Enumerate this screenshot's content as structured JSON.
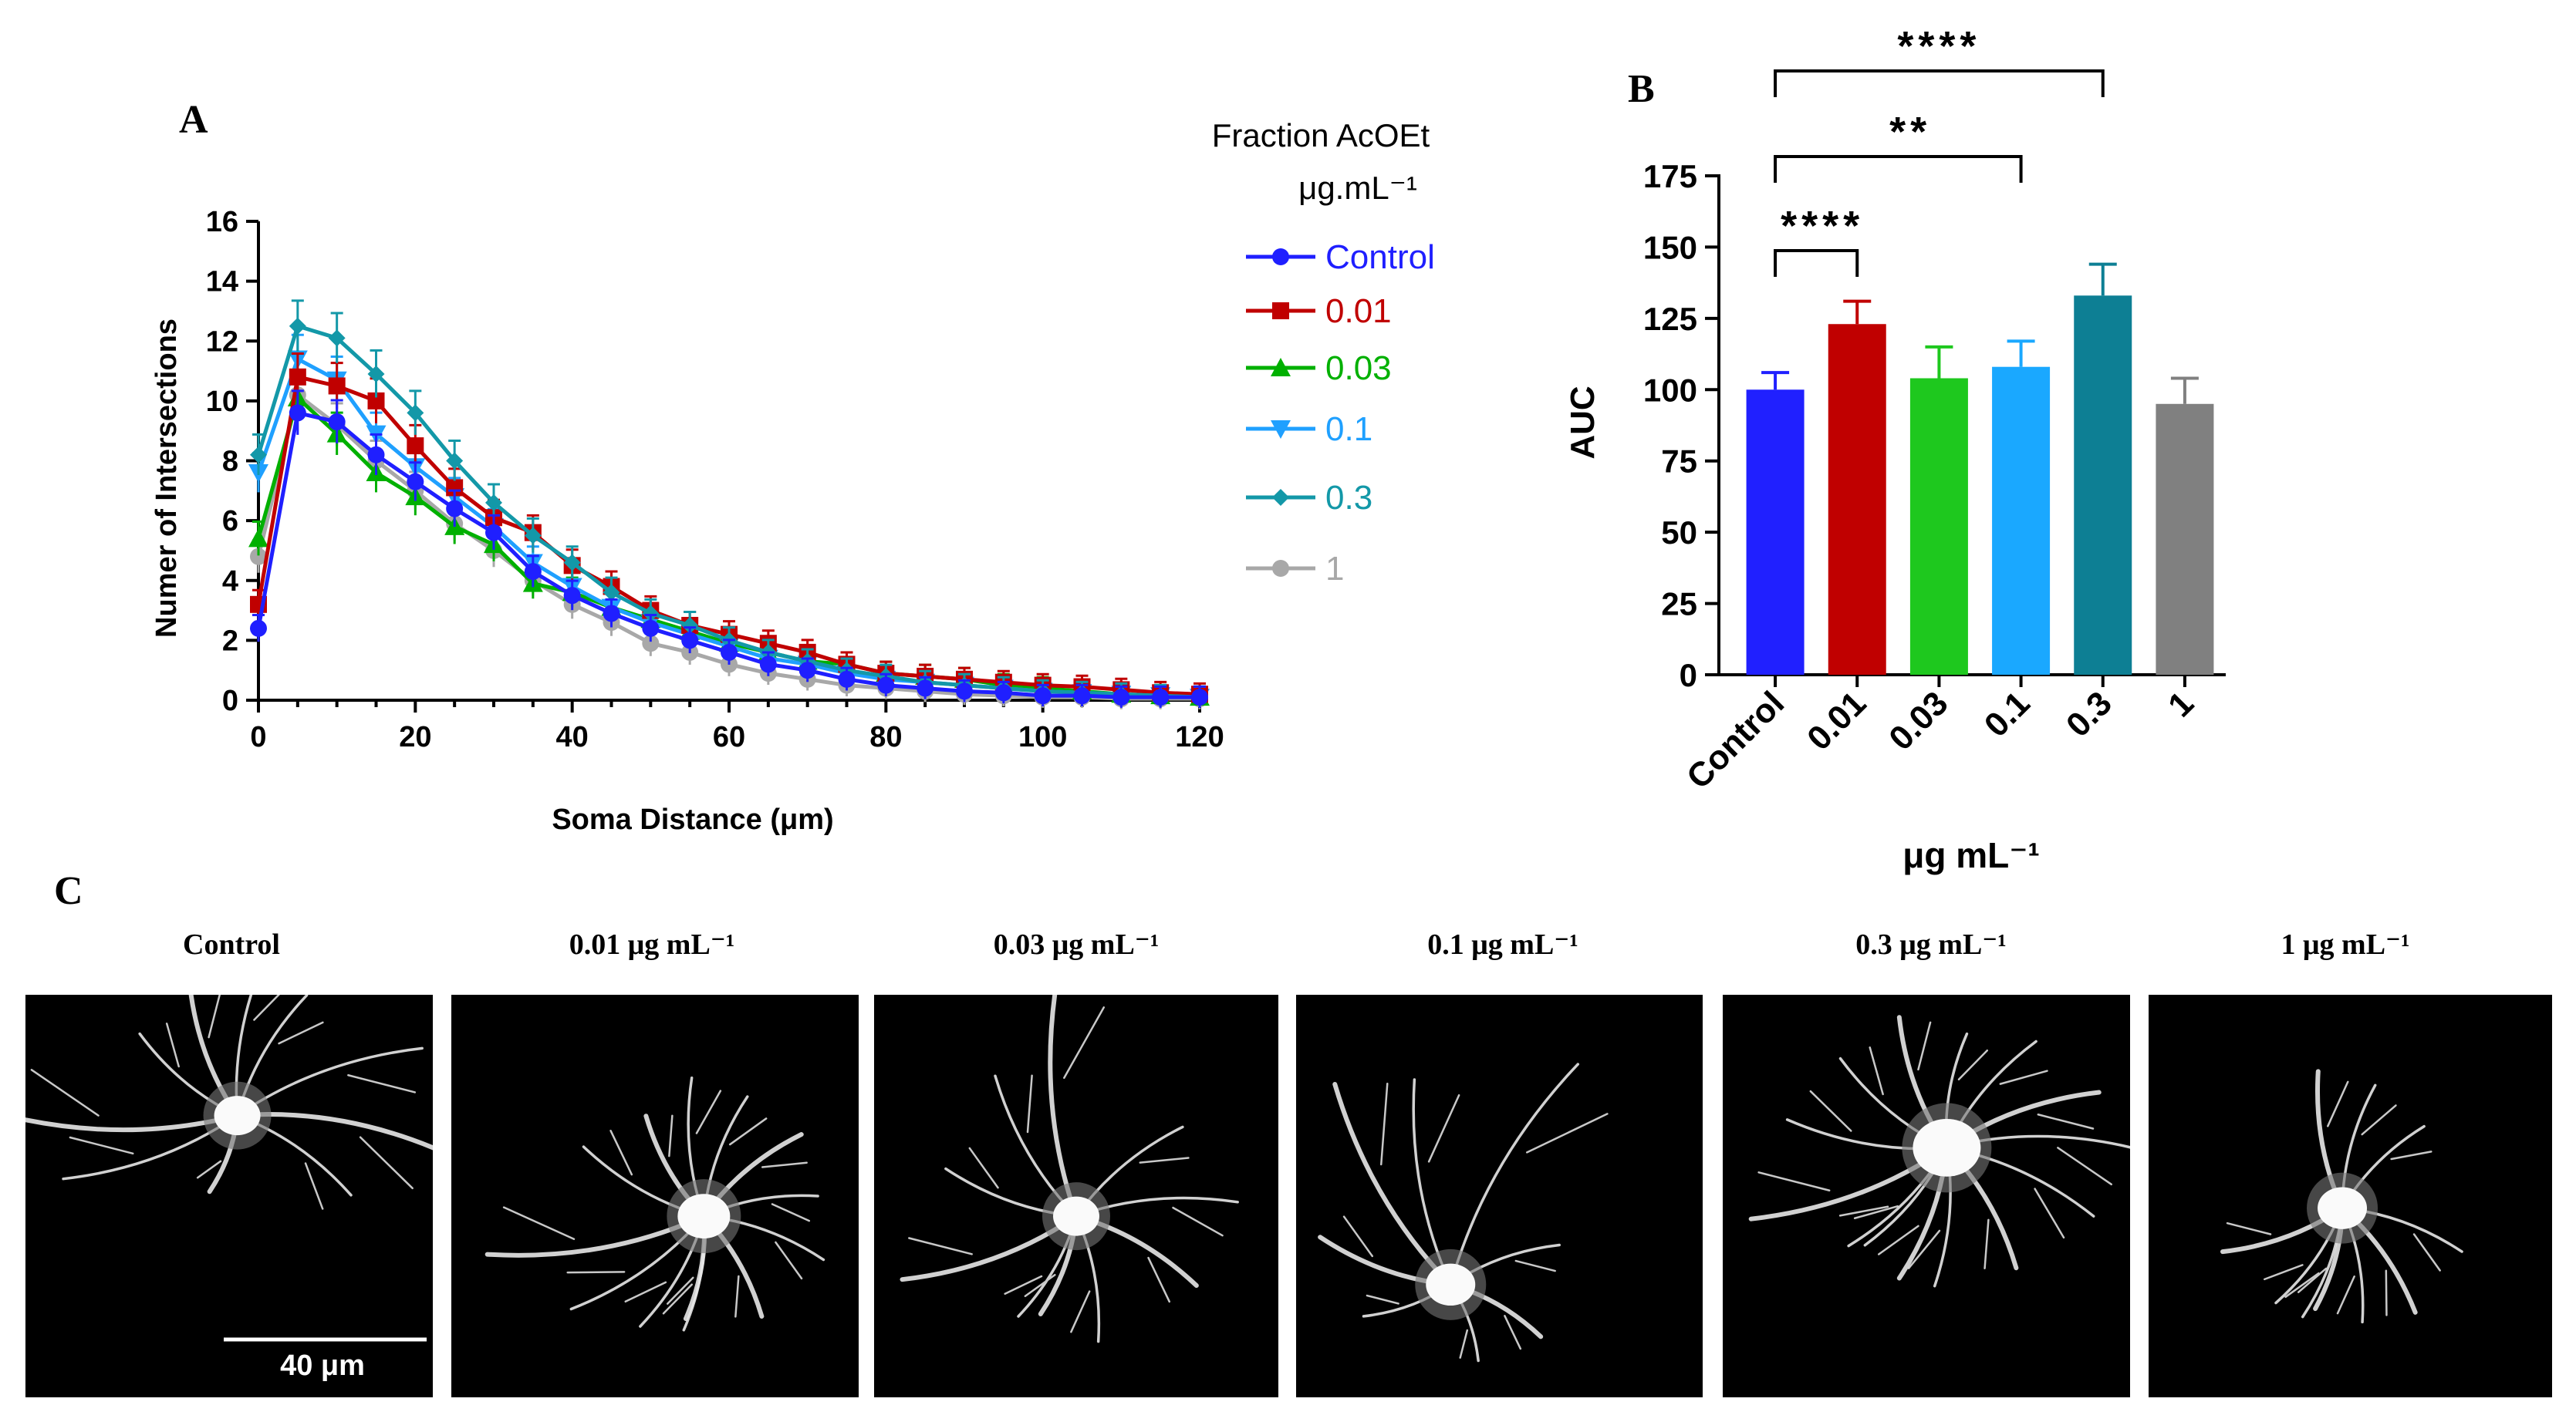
{
  "panel_labels": {
    "a": "A",
    "b": "B",
    "c": "C"
  },
  "colors": {
    "control": "#1f1fff",
    "c001": "#c00000",
    "c003": "#00b000",
    "c01": "#1fa0ff",
    "c03": "#1398a8",
    "c1": "#a8a8a8",
    "bar_control": "#2020ff",
    "bar_001": "#c00000",
    "bar_003": "#1ec81e",
    "bar_01": "#1aa8ff",
    "bar_03": "#0d7f94",
    "bar_1": "#808080"
  },
  "chart_data": [
    {
      "type": "line",
      "title": "",
      "xlabel": "Soma Distance (μm)",
      "ylabel": "Numer of Intersections",
      "xlim": [
        0,
        120
      ],
      "ylim": [
        0,
        16
      ],
      "xticks": [
        "0",
        "20",
        "40",
        "60",
        "80",
        "100",
        "120"
      ],
      "yticks": [
        "0",
        "2",
        "4",
        "6",
        "8",
        "10",
        "12",
        "14",
        "16"
      ],
      "legend_title": [
        "Fraction AcOEt",
        "μg.mL⁻¹"
      ],
      "x": [
        0,
        5,
        10,
        15,
        20,
        25,
        30,
        35,
        40,
        45,
        50,
        55,
        60,
        65,
        70,
        75,
        80,
        85,
        90,
        95,
        100,
        105,
        110,
        115,
        120
      ],
      "series": [
        {
          "name": "Control",
          "marker": "circle",
          "color_key": "control",
          "values": [
            2.4,
            9.6,
            9.3,
            8.2,
            7.3,
            6.4,
            5.6,
            4.3,
            3.5,
            2.9,
            2.4,
            2.0,
            1.6,
            1.2,
            1.0,
            0.7,
            0.5,
            0.4,
            0.3,
            0.25,
            0.15,
            0.15,
            0.1,
            0.1,
            0.1
          ]
        },
        {
          "name": "0.01",
          "marker": "square",
          "color_key": "c001",
          "values": [
            3.2,
            10.8,
            10.5,
            10.0,
            8.5,
            7.1,
            6.1,
            5.6,
            4.5,
            3.8,
            3.0,
            2.5,
            2.2,
            1.9,
            1.6,
            1.2,
            0.9,
            0.8,
            0.7,
            0.6,
            0.5,
            0.45,
            0.35,
            0.25,
            0.2
          ]
        },
        {
          "name": "0.03",
          "marker": "triangle",
          "color_key": "c003",
          "values": [
            5.4,
            10.1,
            8.9,
            7.6,
            6.8,
            5.8,
            5.2,
            3.9,
            3.6,
            3.1,
            2.7,
            2.3,
            1.9,
            1.6,
            1.3,
            1.2,
            0.9,
            0.8,
            0.7,
            0.5,
            0.4,
            0.3,
            0.2,
            0.15,
            0.1
          ]
        },
        {
          "name": "0.1",
          "marker": "triangle-down",
          "color_key": "c01",
          "values": [
            7.6,
            11.4,
            10.7,
            8.9,
            7.8,
            6.8,
            5.8,
            4.6,
            3.8,
            3.1,
            2.6,
            2.2,
            1.8,
            1.4,
            1.2,
            0.9,
            0.7,
            0.6,
            0.5,
            0.4,
            0.3,
            0.25,
            0.2,
            0.15,
            0.1
          ]
        },
        {
          "name": "0.3",
          "marker": "diamond",
          "color_key": "c03",
          "values": [
            8.2,
            12.5,
            12.1,
            10.9,
            9.6,
            8.0,
            6.6,
            5.5,
            4.6,
            3.6,
            2.9,
            2.5,
            2.0,
            1.6,
            1.3,
            1.0,
            0.8,
            0.6,
            0.5,
            0.4,
            0.3,
            0.25,
            0.2,
            0.15,
            0.1
          ]
        },
        {
          "name": "1",
          "marker": "circle",
          "color_key": "c1",
          "values": [
            4.8,
            10.2,
            9.2,
            8.0,
            7.0,
            5.9,
            5.0,
            4.0,
            3.2,
            2.6,
            1.9,
            1.6,
            1.2,
            0.9,
            0.7,
            0.5,
            0.4,
            0.3,
            0.2,
            0.15,
            0.1,
            0.1,
            0.05,
            0.05,
            0.05
          ]
        }
      ]
    },
    {
      "type": "bar",
      "title": "",
      "xlabel": "μg mL⁻¹",
      "ylabel": "AUC",
      "ylim": [
        0,
        175
      ],
      "yticks": [
        "0",
        "25",
        "50",
        "75",
        "100",
        "125",
        "150",
        "175"
      ],
      "categories": [
        "Control",
        "0.01",
        "0.03",
        "0.1",
        "0.3",
        "1"
      ],
      "values": [
        100,
        123,
        104,
        108,
        133,
        95
      ],
      "errors": [
        6,
        8,
        11,
        9,
        11,
        9
      ],
      "color_keys": [
        "bar_control",
        "bar_001",
        "bar_003",
        "bar_01",
        "bar_03",
        "bar_1"
      ],
      "significance": [
        {
          "from": "Control",
          "to": "0.01",
          "label": "****"
        },
        {
          "from": "Control",
          "to": "0.1",
          "label": "**"
        },
        {
          "from": "Control",
          "to": "0.3",
          "label": "****"
        }
      ]
    }
  ],
  "images": {
    "scale_bar_label": "40 μm",
    "panels": [
      {
        "label": "Control"
      },
      {
        "label": "0.01 μg mL⁻¹"
      },
      {
        "label": "0.03 μg mL⁻¹"
      },
      {
        "label": "0.1 μg mL⁻¹"
      },
      {
        "label": "0.3 μg mL⁻¹"
      },
      {
        "label": "1 μg mL⁻¹"
      }
    ]
  }
}
